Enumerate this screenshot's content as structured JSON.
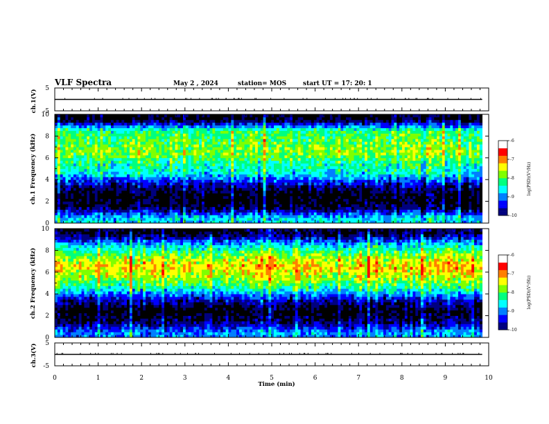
{
  "header": {
    "title": "VLF Spectra",
    "date": "May 2 , 2024",
    "station": "station= MOS",
    "start": "start UT = 17: 20: 1"
  },
  "chart_data": [
    {
      "type": "line",
      "panel": "ch1-waveform",
      "ylabel": "ch.1(V)",
      "ylim": [
        -5,
        5
      ],
      "yticks": [
        "5",
        "-5"
      ],
      "xlim": [
        0,
        10
      ],
      "series": [
        {
          "values_note_constant": true,
          "x": [
            0,
            9.85
          ],
          "y": [
            0,
            0
          ]
        }
      ]
    },
    {
      "type": "heatmap",
      "panel": "ch1-spectrogram",
      "ylabel": "ch.1 Frequency (kHz)",
      "ylim": [
        0,
        10
      ],
      "yticks": [
        "0",
        "2",
        "4",
        "6",
        "8",
        "10"
      ],
      "xlim": [
        0,
        9.85
      ],
      "colorbar": {
        "label": "log(PSD)(V²/Hz)",
        "range": [
          -10,
          -6
        ],
        "ticks": [
          "-6",
          "-7",
          "-8",
          "-9",
          "-10"
        ]
      },
      "profile_khz": [
        0.5,
        1.5,
        2.5,
        3.5,
        4.5,
        5.5,
        6.5,
        7.5,
        8.5,
        9.5
      ],
      "profile_logpsd": [
        -8.3,
        -9.7,
        -9.9,
        -9.3,
        -8.2,
        -7.9,
        -7.4,
        -7.6,
        -7.8,
        -9.8
      ]
    },
    {
      "type": "heatmap",
      "panel": "ch2-spectrogram",
      "ylabel": "ch.2 Frequency (kHz)",
      "ylim": [
        0,
        10
      ],
      "yticks": [
        "0",
        "2",
        "4",
        "6",
        "8",
        "10"
      ],
      "xlim": [
        0,
        9.85
      ],
      "colorbar": {
        "label": "log(PSD)(V²/Hz)",
        "range": [
          -10,
          -6
        ],
        "ticks": [
          "-6",
          "-7",
          "-8",
          "-9",
          "-10"
        ]
      },
      "profile_khz": [
        0.5,
        1.5,
        2.5,
        3.5,
        4.5,
        5.5,
        6.5,
        7.5,
        8.5,
        9.5
      ],
      "profile_logpsd": [
        -8.6,
        -9.6,
        -9.9,
        -9.2,
        -8.0,
        -7.3,
        -6.9,
        -7.4,
        -8.3,
        -9.7
      ]
    },
    {
      "type": "line",
      "panel": "ch3-waveform",
      "ylabel": "ch.3(V)",
      "ylim": [
        -5,
        5
      ],
      "yticks": [
        "5",
        "-5"
      ],
      "xlim": [
        0,
        10
      ],
      "series": [
        {
          "values_note_constant": true,
          "x": [
            0,
            9.85
          ],
          "y": [
            0,
            0
          ]
        }
      ]
    }
  ],
  "xaxis": {
    "label": "Time (min)",
    "range": [
      0,
      10
    ],
    "ticks": [
      "0",
      "1",
      "2",
      "3",
      "4",
      "5",
      "6",
      "7",
      "8",
      "9",
      "10"
    ]
  },
  "colors": {
    "colormap": [
      "#000000",
      "#00007f",
      "#0000ff",
      "#007fff",
      "#00ffff",
      "#00ff7f",
      "#7fff00",
      "#ffff00",
      "#ff7f00",
      "#ff0000",
      "#ffffff"
    ]
  }
}
